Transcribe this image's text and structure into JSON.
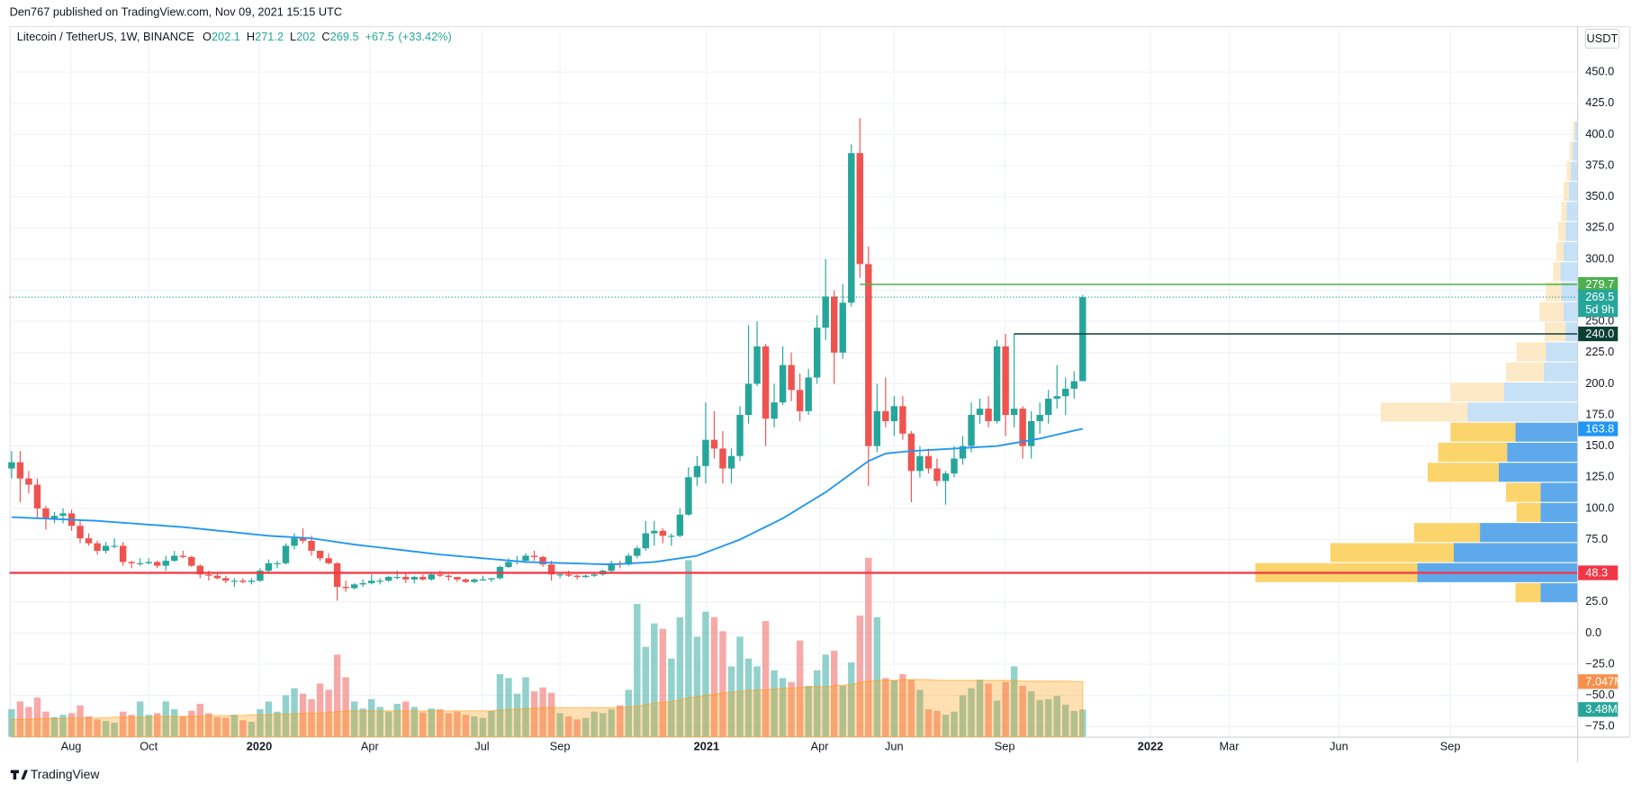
{
  "chart_data": {
    "type": "candlestick",
    "publisher": "Den767 published on TradingView.com, Nov 09, 2021 15:15 UTC",
    "title": "Litecoin / TetherUS, 1W, BINANCE",
    "ohlc_legend": [
      {
        "label": "O",
        "value": 202.1
      },
      {
        "label": "H",
        "value": 271.2
      },
      {
        "label": "L",
        "value": 202.0
      },
      {
        "label": "C",
        "value": 269.5
      }
    ],
    "change": {
      "value": 67.5,
      "label": "+67.5"
    },
    "change_pct": {
      "value": 33.42,
      "label": "(+33.42%)"
    },
    "currency": "USDT",
    "brand": "TradingView",
    "up_color": "#26a69a",
    "down_color": "#ef5350",
    "ma_color": "#2196f3",
    "vol_ma_color": "#ff9800",
    "grid": true,
    "xlim": [
      -0.24,
      182.7
    ],
    "ylim": [
      -83.1,
      484.4
    ],
    "volume_lim": [
      0,
      90.6
    ],
    "xticks": [
      {
        "value": 6.95,
        "label": "Aug"
      },
      {
        "value": 16.0,
        "label": "Oct"
      },
      {
        "value": 28.9,
        "label": "2020"
      },
      {
        "value": 41.8,
        "label": "Apr"
      },
      {
        "value": 54.9,
        "label": "Jul"
      },
      {
        "value": 64.0,
        "label": "Sep"
      },
      {
        "value": 81.1,
        "label": "2021"
      },
      {
        "value": 94.3,
        "label": "Apr"
      },
      {
        "value": 103.0,
        "label": "Jun"
      },
      {
        "value": 115.9,
        "label": "Sep"
      },
      {
        "value": 132.9,
        "label": "2022"
      },
      {
        "value": 142.1,
        "label": "Mar"
      },
      {
        "value": 154.9,
        "label": "Jun"
      },
      {
        "value": 167.9,
        "label": "Sep"
      }
    ],
    "yticks": [
      {
        "value": -75,
        "label": "−75.0"
      },
      {
        "value": -50,
        "label": "−50.0"
      },
      {
        "value": -25,
        "label": "−25.0"
      },
      {
        "value": 0,
        "label": "0.0"
      },
      {
        "value": 25,
        "label": "25.0"
      },
      {
        "value": 50,
        "label": "50.0"
      },
      {
        "value": 75,
        "label": "75.0"
      },
      {
        "value": 100,
        "label": "100.0"
      },
      {
        "value": 125,
        "label": "125.0"
      },
      {
        "value": 150,
        "label": "150.0"
      },
      {
        "value": 175,
        "label": "175.0"
      },
      {
        "value": 200,
        "label": "200.0"
      },
      {
        "value": 225,
        "label": "225.0"
      },
      {
        "value": 250,
        "label": "250.0"
      },
      {
        "value": 275,
        "label": "275.0"
      },
      {
        "value": 300,
        "label": "300.0"
      },
      {
        "value": 325,
        "label": "325.0"
      },
      {
        "value": 350,
        "label": "350.0"
      },
      {
        "value": 375,
        "label": "375.0"
      },
      {
        "value": 400,
        "label": "400.0"
      },
      {
        "value": 425,
        "label": "425.0"
      },
      {
        "value": 450,
        "label": "450.0"
      }
    ],
    "ohlc": [
      [
        132,
        146,
        124,
        137
      ],
      [
        137,
        146,
        105,
        124
      ],
      [
        124,
        130,
        112,
        119
      ],
      [
        119,
        124,
        92,
        100
      ],
      [
        100,
        102,
        83,
        92
      ],
      [
        92,
        97,
        88,
        94
      ],
      [
        94,
        100,
        88,
        96
      ],
      [
        96,
        99,
        82,
        86
      ],
      [
        86,
        90,
        72,
        76
      ],
      [
        76,
        80,
        70,
        72
      ],
      [
        72,
        74,
        63,
        66
      ],
      [
        66,
        73,
        64,
        70
      ],
      [
        70,
        76,
        68,
        70
      ],
      [
        70,
        73,
        54,
        57
      ],
      [
        57,
        58,
        52,
        56
      ],
      [
        56,
        60,
        54,
        56
      ],
      [
        56,
        60,
        55,
        57
      ],
      [
        57,
        58,
        52,
        54
      ],
      [
        54,
        62,
        50,
        58
      ],
      [
        58,
        66,
        57,
        62
      ],
      [
        62,
        66,
        60,
        61
      ],
      [
        61,
        62,
        53,
        54
      ],
      [
        54,
        55,
        44,
        47
      ],
      [
        47,
        50,
        42,
        46
      ],
      [
        46,
        48,
        43,
        44
      ],
      [
        44,
        46,
        40,
        42
      ],
      [
        42,
        44,
        37,
        42
      ],
      [
        42,
        44,
        40,
        41
      ],
      [
        41,
        44,
        39,
        42
      ],
      [
        42,
        52,
        41,
        50
      ],
      [
        50,
        59,
        49,
        56
      ],
      [
        56,
        58,
        52,
        56
      ],
      [
        56,
        72,
        55,
        70
      ],
      [
        70,
        80,
        67,
        76
      ],
      [
        76,
        84,
        72,
        74
      ],
      [
        74,
        78,
        62,
        66
      ],
      [
        66,
        66,
        58,
        60
      ],
      [
        60,
        64,
        55,
        56
      ],
      [
        56,
        57,
        26,
        37
      ],
      [
        37,
        42,
        33,
        36
      ],
      [
        36,
        40,
        35,
        39
      ],
      [
        39,
        43,
        37,
        40
      ],
      [
        40,
        47,
        39,
        42
      ],
      [
        42,
        44,
        39,
        42
      ],
      [
        42,
        46,
        41,
        45
      ],
      [
        45,
        50,
        43,
        45
      ],
      [
        45,
        49,
        40,
        43
      ],
      [
        43,
        46,
        40,
        45
      ],
      [
        45,
        47,
        42,
        43
      ],
      [
        43,
        48,
        42,
        47
      ],
      [
        47,
        50,
        45,
        46
      ],
      [
        46,
        47,
        42,
        45
      ],
      [
        45,
        45,
        41,
        43
      ],
      [
        43,
        44,
        40,
        41
      ],
      [
        41,
        44,
        40,
        43
      ],
      [
        43,
        46,
        42,
        43
      ],
      [
        43,
        44,
        41,
        44
      ],
      [
        44,
        54,
        43,
        53
      ],
      [
        53,
        60,
        52,
        57
      ],
      [
        57,
        62,
        55,
        58
      ],
      [
        58,
        64,
        56,
        62
      ],
      [
        62,
        66,
        58,
        61
      ],
      [
        61,
        62,
        53,
        55
      ],
      [
        55,
        58,
        42,
        47
      ],
      [
        47,
        49,
        44,
        47
      ],
      [
        47,
        50,
        45,
        46
      ],
      [
        46,
        47,
        43,
        45
      ],
      [
        45,
        47,
        44,
        46
      ],
      [
        46,
        48,
        45,
        47
      ],
      [
        47,
        51,
        46,
        50
      ],
      [
        50,
        58,
        48,
        56
      ],
      [
        56,
        58,
        52,
        55
      ],
      [
        55,
        64,
        54,
        62
      ],
      [
        62,
        70,
        60,
        68
      ],
      [
        68,
        90,
        66,
        80
      ],
      [
        80,
        90,
        70,
        82
      ],
      [
        82,
        84,
        72,
        78
      ],
      [
        78,
        80,
        70,
        78
      ],
      [
        78,
        100,
        77,
        95
      ],
      [
        95,
        133,
        94,
        125
      ],
      [
        125,
        142,
        118,
        134
      ],
      [
        134,
        185,
        120,
        155
      ],
      [
        155,
        178,
        140,
        148
      ],
      [
        148,
        162,
        120,
        132
      ],
      [
        132,
        148,
        120,
        142
      ],
      [
        142,
        182,
        138,
        175
      ],
      [
        175,
        247,
        168,
        200
      ],
      [
        200,
        250,
        198,
        230
      ],
      [
        230,
        232,
        150,
        172
      ],
      [
        172,
        200,
        165,
        185
      ],
      [
        185,
        230,
        183,
        215
      ],
      [
        215,
        225,
        186,
        195
      ],
      [
        195,
        208,
        170,
        178
      ],
      [
        178,
        212,
        175,
        205
      ],
      [
        205,
        255,
        200,
        245
      ],
      [
        245,
        300,
        235,
        270
      ],
      [
        270,
        275,
        200,
        225
      ],
      [
        225,
        280,
        220,
        265
      ],
      [
        265,
        392,
        262,
        385
      ],
      [
        385,
        413,
        285,
        296
      ],
      [
        296,
        310,
        118,
        150
      ],
      [
        150,
        200,
        145,
        178
      ],
      [
        178,
        205,
        165,
        170
      ],
      [
        170,
        190,
        158,
        182
      ],
      [
        182,
        190,
        155,
        160
      ],
      [
        160,
        162,
        105,
        130
      ],
      [
        130,
        150,
        125,
        142
      ],
      [
        142,
        148,
        128,
        132
      ],
      [
        132,
        140,
        118,
        122
      ],
      [
        122,
        130,
        103,
        128
      ],
      [
        128,
        150,
        125,
        140
      ],
      [
        140,
        158,
        135,
        150
      ],
      [
        150,
        185,
        145,
        175
      ],
      [
        175,
        188,
        168,
        180
      ],
      [
        180,
        190,
        165,
        170
      ],
      [
        170,
        235,
        168,
        230
      ],
      [
        230,
        240,
        158,
        175
      ],
      [
        175,
        240,
        165,
        180
      ],
      [
        180,
        182,
        140,
        150
      ],
      [
        150,
        178,
        140,
        170
      ],
      [
        170,
        185,
        160,
        175
      ],
      [
        175,
        195,
        168,
        188
      ],
      [
        188,
        215,
        180,
        190
      ],
      [
        190,
        205,
        175,
        196
      ],
      [
        196,
        210,
        188,
        202
      ],
      [
        202.1,
        271.2,
        202.0,
        269.5
      ]
    ],
    "ma": [
      93,
      92.7,
      92.4,
      92.1,
      91.8,
      91.5,
      91.2,
      90.9,
      90.6,
      90.3,
      90,
      89.5,
      89,
      88.5,
      88,
      87.5,
      87,
      86.5,
      86,
      85.5,
      85,
      84.3,
      83.6,
      82.9,
      82.2,
      81.5,
      80.8,
      80.1,
      79.4,
      78.7,
      78,
      77.6,
      77.2,
      76.8,
      76.4,
      76,
      75,
      74,
      73,
      72,
      71,
      70.2,
      69.4,
      68.6,
      67.8,
      67,
      66.2,
      65.4,
      64.6,
      63.8,
      63,
      62.4,
      61.8,
      61.2,
      60.6,
      60,
      59.4,
      58.8,
      58.2,
      57.6,
      57,
      56.8,
      56.6,
      56.4,
      56.2,
      56,
      55.8,
      55.6,
      55.4,
      55.2,
      55,
      55.4,
      55.8,
      56.2,
      56.6,
      57,
      58,
      59,
      60,
      61,
      62,
      64.6,
      67.2,
      69.8,
      72.4,
      75,
      78.4,
      81.8,
      85.2,
      88.6,
      92,
      96.2,
      100.4,
      104.6,
      108.8,
      113,
      118,
      123,
      128,
      133,
      138,
      141,
      144,
      144.7,
      145.4,
      146,
      146.4,
      146.8,
      147.2,
      147.6,
      148,
      148.4,
      148.8,
      149.2,
      149.6,
      150,
      151.2,
      152.4,
      153.6,
      154.8,
      156,
      157.6,
      159.2,
      160.8,
      162.4,
      163.8
    ],
    "volume": [
      3.5,
      4.5,
      3.8,
      5,
      3.2,
      2.5,
      2.8,
      3,
      4,
      2.6,
      2.2,
      2,
      1.8,
      3.2,
      2.8,
      4.5,
      2.8,
      3,
      4.5,
      3.5,
      2.6,
      3.3,
      4.2,
      3,
      2.5,
      2.4,
      2.8,
      2.1,
      1.9,
      3.5,
      4.5,
      3.2,
      5.3,
      6.2,
      5.5,
      4.8,
      6.8,
      6,
      10.5,
      7.6,
      4.5,
      3.6,
      4.8,
      3.8,
      3.2,
      4.2,
      4.5,
      3.8,
      3.1,
      3.6,
      3.5,
      3,
      3.2,
      2.8,
      2.6,
      2.4,
      3.3,
      8,
      7.5,
      5.5,
      7.6,
      5.8,
      6.3,
      5.6,
      3,
      2.6,
      2.2,
      2.4,
      3.2,
      3,
      3.5,
      4,
      6,
      17,
      11.5,
      14.5,
      13.8,
      10,
      15.3,
      22.6,
      12.8,
      16,
      15.3,
      13.5,
      9,
      12.8,
      10,
      9,
      14.8,
      8.5,
      7.5,
      7,
      12.3,
      6.5,
      8.5,
      10.5,
      11,
      6.5,
      9.5,
      15.5,
      22.9,
      15.3,
      7.5,
      7.2,
      8,
      7.3,
      6,
      3.5,
      3.3,
      2.8,
      3.2,
      5.3,
      6.2,
      7.3,
      6.8,
      4.6,
      7,
      9,
      6.5,
      5.8,
      4.7,
      4.8,
      5.2,
      4.1,
      3.3,
      3.48
    ],
    "volume_ma": [
      2.2,
      2.2,
      2.2,
      2.3,
      2.3,
      2.3,
      2.3,
      2.4,
      2.4,
      2.4,
      2.4,
      2.4,
      2.5,
      2.5,
      2.5,
      2.5,
      2.5,
      2.6,
      2.6,
      2.6,
      2.6,
      2.6,
      2.6,
      2.7,
      2.7,
      2.7,
      2.7,
      2.7,
      2.8,
      2.8,
      2.8,
      2.9,
      2.9,
      2.9,
      3,
      3,
      3,
      3.1,
      3.2,
      3.3,
      3.3,
      3.3,
      3.3,
      3.3,
      3.3,
      3.3,
      3.3,
      3.3,
      3.3,
      3.3,
      3.3,
      3.3,
      3.3,
      3.3,
      3.3,
      3.3,
      3.3,
      3.4,
      3.5,
      3.5,
      3.6,
      3.6,
      3.7,
      3.7,
      3.7,
      3.7,
      3.7,
      3.7,
      3.7,
      3.7,
      3.7,
      3.7,
      3.8,
      3.9,
      4.1,
      4.3,
      4.4,
      4.5,
      4.7,
      5,
      5.1,
      5.3,
      5.4,
      5.6,
      5.7,
      5.8,
      5.9,
      6,
      6,
      6.1,
      6.2,
      6.2,
      6.3,
      6.4,
      6.4,
      6.4,
      6.5,
      6.6,
      6.7,
      6.9,
      7.1,
      7.2,
      7.2,
      7.2,
      7.3,
      7.3,
      7.3,
      7.3,
      7.2,
      7.2,
      7.2,
      7.2,
      7.2,
      7.2,
      7.2,
      7.2,
      7.2,
      7.2,
      7.1,
      7.1,
      7.1,
      7.1,
      7.1,
      7.1,
      7.05,
      7.047
    ],
    "volume_profile": {
      "bins": [
        24.3,
        40.4,
        56.5,
        72.6,
        88.7,
        104.8,
        120.9,
        137,
        153.1,
        169.2,
        185.3,
        201.4,
        217.5,
        233.6,
        249.7,
        265.8,
        281.9,
        298,
        314.1,
        330.2,
        346.3,
        362.4,
        378.5,
        394.6,
        410.7
      ],
      "up": [
        35,
        153,
        118,
        93,
        35,
        35,
        75,
        67,
        59,
        105,
        70,
        32,
        30,
        11,
        13,
        15,
        16,
        13,
        11,
        10,
        8,
        6,
        4,
        2
      ],
      "down": [
        24,
        155,
        118,
        63,
        23,
        33,
        68,
        66,
        62,
        83,
        51,
        36,
        28,
        20,
        23,
        15,
        7,
        7,
        7,
        5,
        5,
        4,
        3,
        2
      ],
      "value_area": [
        0,
        8
      ],
      "up_color": "#5ea9ec",
      "down_color": "#fbd46c",
      "up_light_color": "#c6e0f6",
      "down_light_color": "#fde9c6"
    },
    "lines": [
      {
        "value": 279.7,
        "from": 99,
        "color": "#4caf50"
      },
      {
        "value": 240,
        "from": 117,
        "color": "#0b3f36"
      },
      {
        "value": 48.3,
        "color": "#f23645"
      }
    ],
    "badges": [
      {
        "value": 279.7,
        "color": "#4caf50"
      },
      {
        "value": 269.5,
        "color": "#26a69a",
        "sub": "5d 9h"
      },
      {
        "value": 240,
        "label": "240.0",
        "color": "#0b3f36"
      },
      {
        "value": 163.8,
        "color": "#2196f3"
      },
      {
        "value": 48.3,
        "color": "#f23645"
      }
    ],
    "volume_badges": [
      {
        "value": 7.047,
        "label": "7.047M",
        "color": "#f7904b"
      },
      {
        "value": 3.48,
        "label": "3.48M",
        "color": "#26a69a"
      }
    ]
  }
}
